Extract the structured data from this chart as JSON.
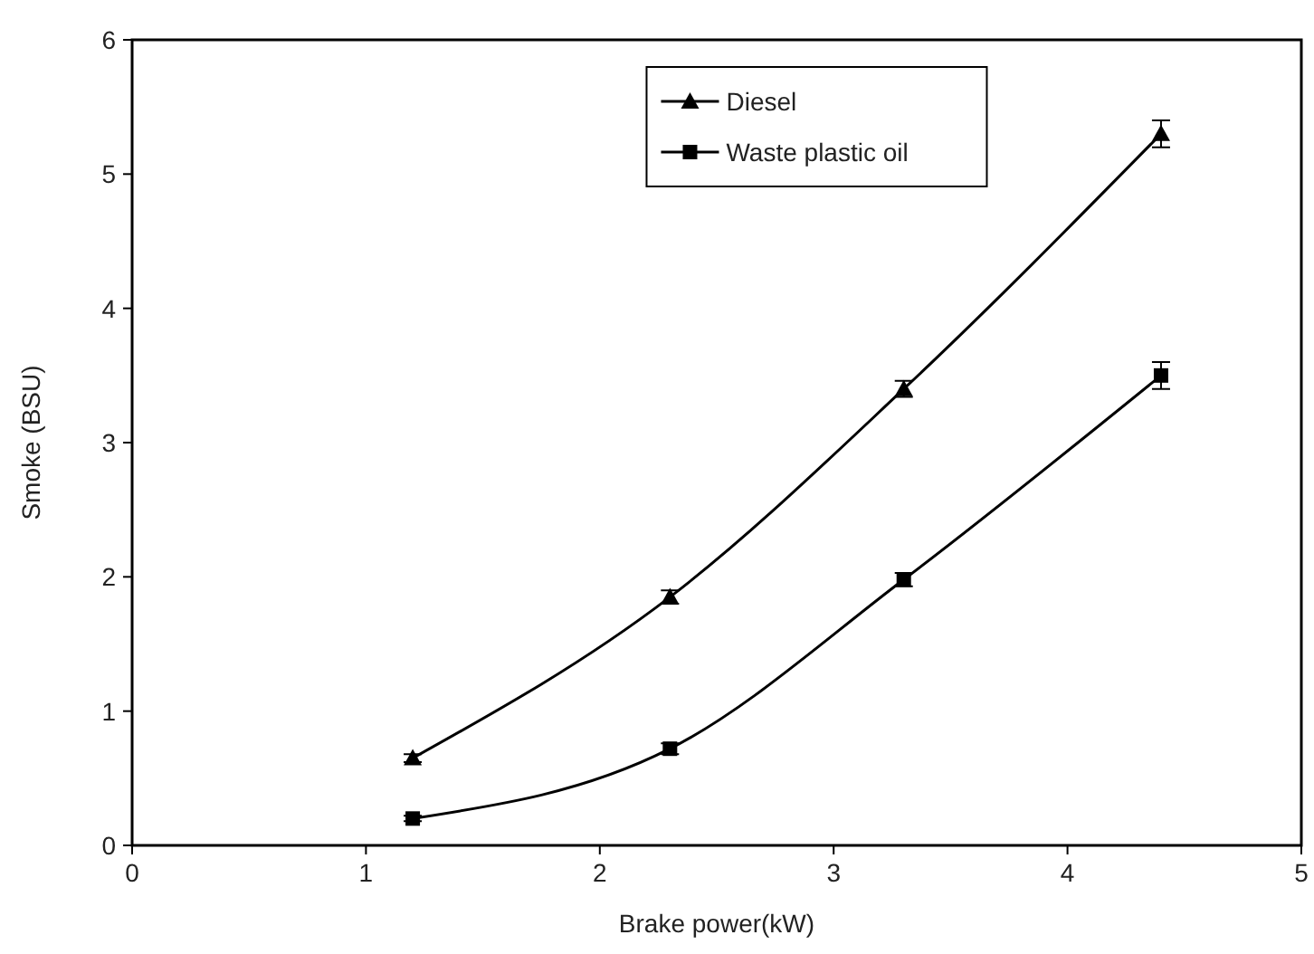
{
  "chart_data": {
    "type": "line",
    "xlabel": "Brake power(kW)",
    "ylabel": "Smoke (BSU)",
    "x": [
      1.2,
      2.3,
      3.3,
      4.4
    ],
    "series": [
      {
        "name": "Diesel",
        "color": "#000000",
        "marker": "triangle",
        "values": [
          0.65,
          1.85,
          3.4,
          5.3
        ],
        "errors": [
          0.03,
          0.05,
          0.06,
          0.1
        ]
      },
      {
        "name": "Waste plastic oil",
        "color": "#000000",
        "marker": "square",
        "values": [
          0.2,
          0.72,
          1.98,
          3.5
        ],
        "errors": [
          0.02,
          0.04,
          0.05,
          0.1
        ]
      }
    ],
    "xlim": [
      0,
      5
    ],
    "xticks": [
      0,
      1,
      2,
      3,
      4,
      5
    ],
    "ylim": [
      0,
      6
    ],
    "yticks": [
      0,
      1,
      2,
      3,
      4,
      5,
      6
    ],
    "grid": false,
    "legend": "top",
    "line_style": "solid"
  }
}
